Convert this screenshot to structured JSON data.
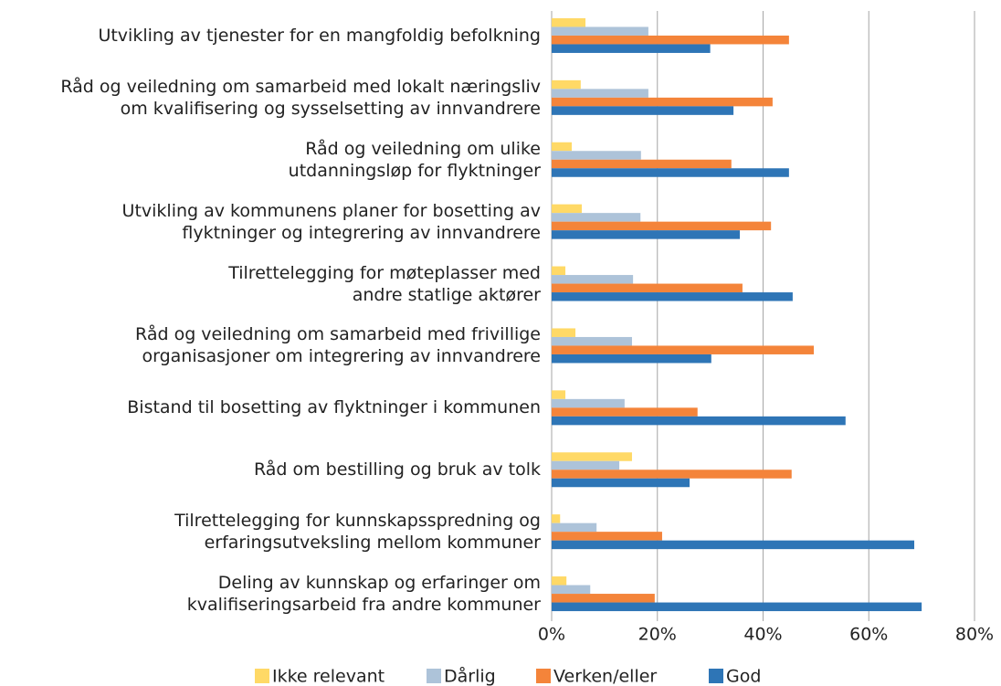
{
  "chart_data": {
    "type": "barh",
    "categories": [
      "Utvikling av tjenester for en mangfoldig befolkning",
      "Råd og veiledning om samarbeid med lokalt næringsliv\nom kvalifisering og sysselsetting av innvandrere",
      "Råd og veiledning om ulike\nutdanningsløp for flyktninger",
      "Utvikling av kommunens planer for bosetting av\nflyktninger og integrering av innvandrere",
      "Tilrettelegging for møteplasser med\nandre statlige aktører",
      "Råd og veiledning om samarbeid med frivillige\norganisasjoner om integrering av innvandrere",
      "Bistand til bosetting av flyktninger i kommunen",
      "Råd om bestilling og bruk av tolk",
      "Tilrettelegging for kunnskapsspredning og\nerfaringsutveksling mellom kommuner",
      "Deling av kunnskap og erfaringer om\nkvalifiseringsarbeid fra andre kommuner"
    ],
    "series": [
      {
        "name": "Ikke relevant",
        "color": "#ffd966",
        "values": [
          6.4,
          5.5,
          3.8,
          5.7,
          2.6,
          4.5,
          2.6,
          15.2,
          1.6,
          2.8
        ]
      },
      {
        "name": "Dårlig",
        "color": "#adc3d9",
        "values": [
          18.3,
          18.3,
          16.9,
          16.8,
          15.4,
          15.2,
          13.8,
          12.8,
          8.5,
          7.3
        ]
      },
      {
        "name": "Verken/eller",
        "color": "#f4843a",
        "values": [
          44.9,
          41.8,
          34.0,
          41.5,
          36.1,
          49.6,
          27.6,
          45.4,
          20.9,
          19.5
        ]
      },
      {
        "name": "God",
        "color": "#2e75b6",
        "values": [
          30.0,
          34.4,
          44.9,
          35.6,
          45.6,
          30.2,
          55.6,
          26.1,
          68.6,
          70.0
        ]
      }
    ],
    "xlim": [
      0,
      80
    ],
    "xticks": [
      {
        "value": 0,
        "label": "0%"
      },
      {
        "value": 20,
        "label": "20%"
      },
      {
        "value": 40,
        "label": "40%"
      },
      {
        "value": 60,
        "label": "60%"
      },
      {
        "value": 80,
        "label": "80%"
      }
    ],
    "grid": true,
    "legend": "bottom"
  }
}
